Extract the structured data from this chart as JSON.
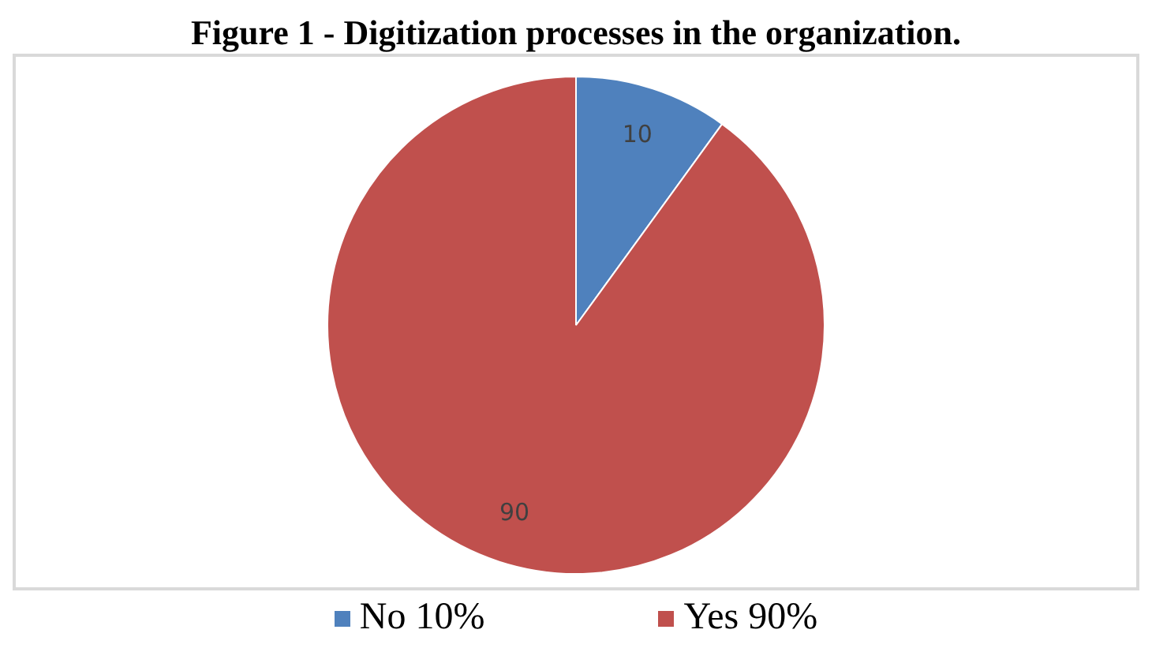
{
  "chart_data": {
    "type": "pie",
    "title": "Figure 1 - Digitization processes in the organization.",
    "categories": [
      "No 10%",
      "Yes 90%"
    ],
    "values": [
      10,
      90
    ],
    "colors": [
      "#4f81bd",
      "#c0504d"
    ],
    "data_labels": true,
    "legend": "bottom"
  }
}
